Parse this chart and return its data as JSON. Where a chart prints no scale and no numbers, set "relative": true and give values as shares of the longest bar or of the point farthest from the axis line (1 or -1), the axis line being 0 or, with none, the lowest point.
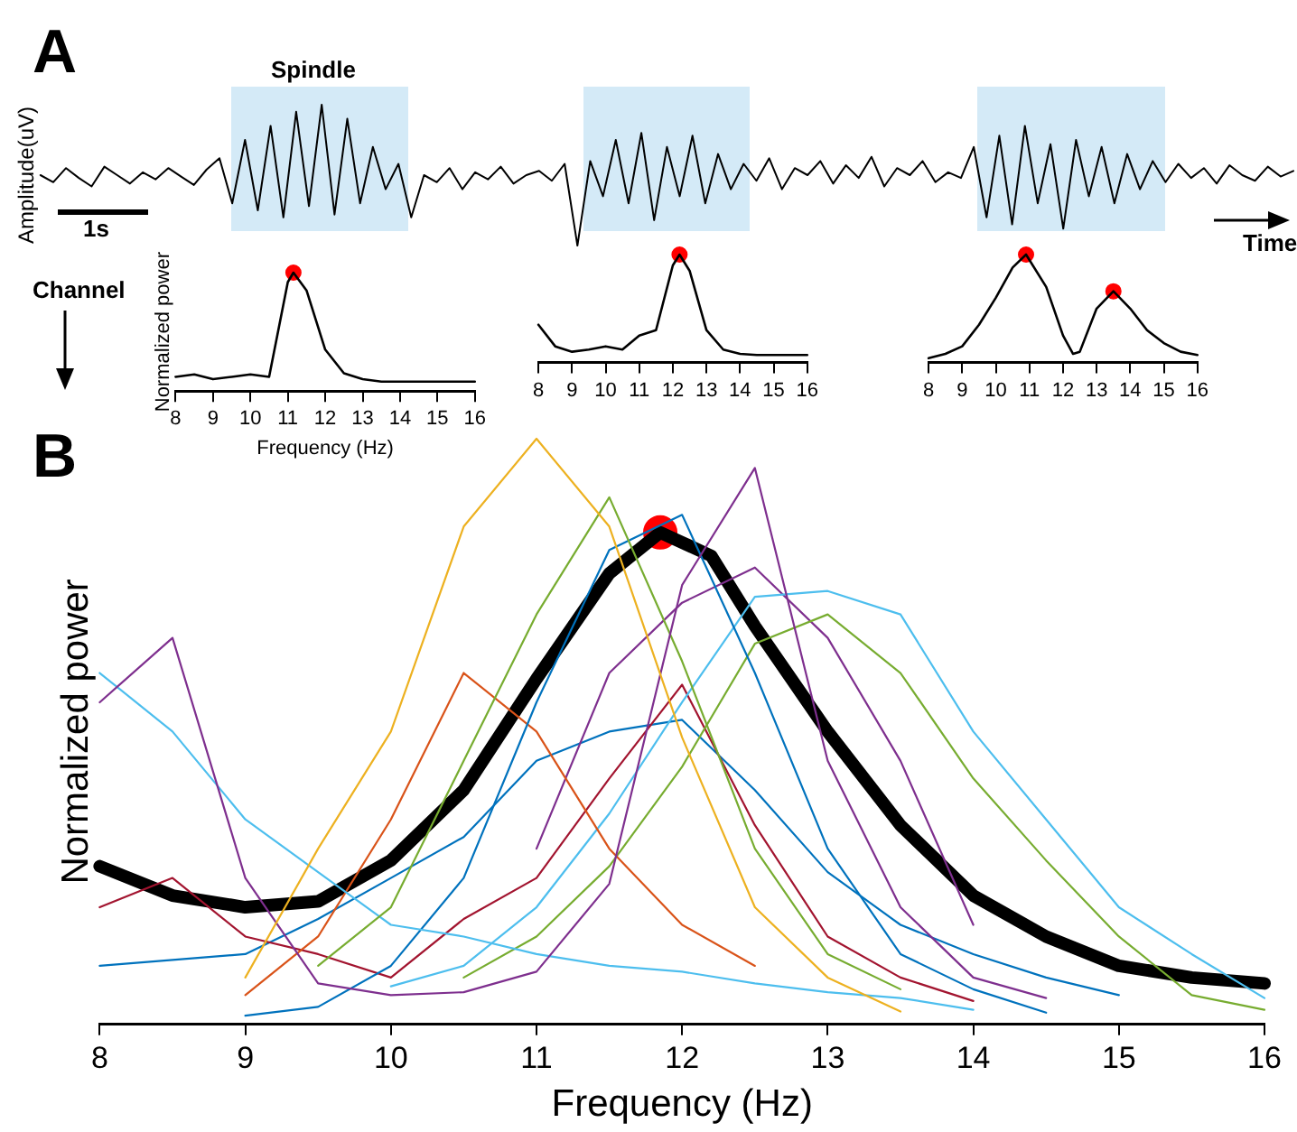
{
  "chart_data": [
    {
      "type": "line",
      "relative": true,
      "ylabel": "Amplitude(uV)",
      "tick_labels": false,
      "color": "#000000",
      "categories": [
        null,
        null,
        null,
        null,
        null,
        null,
        null,
        null,
        null,
        null,
        null,
        null,
        null,
        null,
        null,
        null,
        null,
        null,
        null,
        null,
        null,
        null,
        null,
        null,
        null,
        null,
        null,
        null,
        null,
        null,
        null,
        null,
        null,
        null,
        null,
        null,
        null,
        null,
        null,
        null,
        null,
        null,
        null,
        null,
        null,
        null,
        null,
        null,
        null,
        null,
        null,
        null,
        null,
        null,
        null,
        null,
        null,
        null,
        null,
        null,
        null,
        null,
        null,
        null,
        null,
        null,
        null,
        null,
        null,
        null,
        null,
        null,
        null,
        null,
        null,
        null,
        null,
        null,
        null,
        null,
        null,
        null,
        null,
        null,
        null,
        null,
        null,
        null,
        null,
        null,
        null,
        null,
        null,
        null,
        null,
        null,
        null,
        null,
        null
      ],
      "values": [
        0.5,
        0.45,
        0.55,
        0.48,
        0.42,
        0.56,
        0.5,
        0.44,
        0.52,
        0.47,
        0.55,
        0.49,
        0.43,
        0.54,
        0.62,
        0.3,
        0.75,
        0.25,
        0.85,
        0.2,
        0.95,
        0.28,
        1.0,
        0.22,
        0.9,
        0.3,
        0.7,
        0.4,
        0.58,
        0.2,
        0.5,
        0.45,
        0.55,
        0.4,
        0.52,
        0.47,
        0.56,
        0.44,
        0.5,
        0.53,
        0.46,
        0.58,
        0,
        0.6,
        0.35,
        0.75,
        0.3,
        0.8,
        0.18,
        0.7,
        0.35,
        0.78,
        0.3,
        0.65,
        0.4,
        0.58,
        0.46,
        0.62,
        0.4,
        0.55,
        0.5,
        0.6,
        0.44,
        0.57,
        0.48,
        0.63,
        0.42,
        0.55,
        0.5,
        0.6,
        0.45,
        0.52,
        0.48,
        0.7,
        0.2,
        0.78,
        0.15,
        0.85,
        0.3,
        0.72,
        0.12,
        0.75,
        0.35,
        0.7,
        0.3,
        0.65,
        0.4,
        0.6,
        0.45,
        0.58,
        0.48,
        0.55,
        0.44,
        0.57,
        0.5,
        0.46,
        0.56,
        0.49,
        0.53
      ],
      "annotations": [
        "A",
        "Spindle",
        "1s",
        "Time",
        "Channel"
      ]
    },
    {
      "type": "line",
      "relative": true,
      "xlabel": "Frequency (Hz)",
      "ylabel": "Normalized power",
      "tick_labels": "x",
      "xlim": [
        8,
        16
      ],
      "xticks": [
        8,
        9,
        10,
        11,
        12,
        13,
        14,
        15,
        16
      ],
      "series": [
        {
          "color": "#000000",
          "x": [
            8,
            8.5,
            9,
            9.5,
            10,
            10.5,
            11,
            11.15,
            11.5,
            12,
            12.5,
            13,
            13.5,
            14,
            14.5,
            15,
            15.5,
            16
          ],
          "values": [
            0.12,
            0.14,
            0.1,
            0.12,
            0.14,
            0.12,
            0.92,
            1,
            0.85,
            0.35,
            0.15,
            0.1,
            0.08,
            0.08,
            0.08,
            0.08,
            0.08,
            0.08
          ]
        },
        {
          "type": "scatter",
          "marker": "circle",
          "color": "#ff0000",
          "x": [
            11.15
          ],
          "values": [
            1
          ]
        }
      ]
    },
    {
      "type": "line",
      "relative": true,
      "tick_labels": "x",
      "xlim": [
        8,
        16
      ],
      "xticks": [
        8,
        9,
        10,
        11,
        12,
        13,
        14,
        15,
        16
      ],
      "series": [
        {
          "color": "#000000",
          "x": [
            8,
            8.5,
            9,
            9.5,
            10,
            10.5,
            11,
            11.5,
            12,
            12.2,
            12.5,
            13,
            13.5,
            14,
            14.5,
            15,
            15.5,
            16
          ],
          "values": [
            0.35,
            0.15,
            0.1,
            0.12,
            0.15,
            0.12,
            0.25,
            0.3,
            0.9,
            1,
            0.85,
            0.3,
            0.12,
            0.08,
            0.07,
            0.07,
            0.07,
            0.07
          ]
        },
        {
          "type": "scatter",
          "marker": "circle",
          "color": "#ff0000",
          "x": [
            12.2
          ],
          "values": [
            1
          ]
        }
      ]
    },
    {
      "type": "line",
      "relative": true,
      "tick_labels": "x",
      "xlim": [
        8,
        16
      ],
      "xticks": [
        8,
        9,
        10,
        11,
        12,
        13,
        14,
        15,
        16
      ],
      "series": [
        {
          "color": "#000000",
          "x": [
            8,
            8.5,
            9,
            9.5,
            10,
            10.5,
            10.9,
            11.5,
            12,
            12.3,
            12.5,
            13,
            13.5,
            14,
            14.5,
            15,
            15.5,
            16
          ],
          "values": [
            0.04,
            0.08,
            0.15,
            0.35,
            0.6,
            0.88,
            1,
            0.7,
            0.25,
            0.08,
            0.1,
            0.5,
            0.66,
            0.5,
            0.3,
            0.18,
            0.1,
            0.07
          ]
        },
        {
          "type": "scatter",
          "marker": "circle",
          "color": "#ff0000",
          "x": [
            10.9,
            13.5
          ],
          "values": [
            1,
            0.66
          ]
        }
      ]
    },
    {
      "type": "line",
      "relative": true,
      "xlabel": "Frequency (Hz)",
      "ylabel": "Normalized power",
      "tick_labels": "x",
      "xlim": [
        8,
        16
      ],
      "xticks": [
        8,
        9,
        10,
        11,
        12,
        13,
        14,
        15,
        16
      ],
      "x": [
        8,
        8.5,
        9,
        9.5,
        10,
        10.5,
        11,
        11.5,
        12,
        12.5,
        13,
        13.5,
        14,
        14.5,
        15,
        15.5,
        16
      ],
      "series": [
        {
          "color": "#edb120",
          "values": [
            null,
            null,
            0.08,
            0.3,
            0.5,
            0.85,
            1,
            0.85,
            0.49,
            0.2,
            0.08,
            0.022,
            null,
            null,
            null,
            null,
            null
          ]
        },
        {
          "color": "#7e2f8e",
          "values": [
            0.55,
            0.66,
            0.25,
            0.07,
            0.05,
            0.055,
            0.09,
            0.24,
            0.75,
            0.95,
            0.45,
            0.2,
            0.08,
            0.045,
            null,
            null,
            null
          ]
        },
        {
          "color": "#77ac30",
          "values": [
            null,
            null,
            null,
            0.1,
            0.2,
            0.45,
            0.7,
            0.9,
            0.62,
            0.3,
            0.12,
            0.06,
            null,
            null,
            null,
            null,
            null
          ]
        },
        {
          "color": "#4dbeee",
          "values": [
            0.6,
            0.5,
            0.35,
            0.26,
            0.17,
            0.15,
            0.12,
            0.1,
            0.09,
            0.07,
            0.055,
            0.045,
            0.025,
            null,
            null,
            null,
            null
          ]
        },
        {
          "color": "#0072bd",
          "values": [
            null,
            null,
            0.015,
            0.03,
            0.1,
            0.25,
            0.55,
            0.81,
            0.87,
            0.6,
            0.3,
            0.12,
            0.06,
            0.02,
            null,
            null,
            null
          ]
        },
        {
          "color": "#d95319",
          "values": [
            null,
            null,
            0.05,
            0.15,
            0.35,
            0.6,
            0.5,
            0.3,
            0.17,
            0.1,
            null,
            null,
            null,
            null,
            null,
            null,
            null
          ]
        },
        {
          "color": "#4dbeee",
          "values": [
            null,
            null,
            null,
            null,
            0.065,
            0.1,
            0.2,
            0.36,
            0.55,
            0.73,
            0.74,
            0.7,
            0.5,
            0.35,
            0.2,
            0.12,
            0.045
          ]
        },
        {
          "color": "#77ac30",
          "values": [
            null,
            null,
            null,
            null,
            null,
            0.08,
            0.15,
            0.27,
            0.44,
            0.65,
            0.7,
            0.6,
            0.42,
            0.28,
            0.15,
            0.05,
            0.025
          ]
        },
        {
          "color": "#7e2f8e",
          "values": [
            null,
            null,
            null,
            null,
            null,
            null,
            0.3,
            0.6,
            0.72,
            0.78,
            0.66,
            0.45,
            0.17,
            null,
            null,
            null,
            null
          ]
        },
        {
          "color": "#a2142f",
          "values": [
            0.2,
            0.25,
            0.15,
            0.12,
            0.08,
            0.18,
            0.25,
            0.42,
            0.58,
            0.34,
            0.15,
            0.08,
            0.04,
            null,
            null,
            null,
            null
          ]
        },
        {
          "color": "#0072bd",
          "values": [
            0.1,
            0.11,
            0.12,
            0.18,
            0.25,
            0.32,
            0.45,
            0.5,
            0.52,
            0.4,
            0.26,
            0.17,
            0.12,
            0.08,
            0.05,
            null,
            null
          ]
        },
        {
          "color": "#000000",
          "x": [
            8,
            8.5,
            9,
            9.5,
            10,
            10.5,
            11,
            11.5,
            11.85,
            12.2,
            12.5,
            13,
            13.5,
            14,
            14.5,
            15,
            15.5,
            16
          ],
          "values": [
            0.27,
            0.22,
            0.2,
            0.21,
            0.28,
            0.4,
            0.59,
            0.77,
            0.84,
            0.8,
            0.68,
            0.5,
            0.34,
            0.22,
            0.15,
            0.1,
            0.08,
            0.07
          ]
        },
        {
          "type": "scatter",
          "marker": "circle",
          "color": "#ff0000",
          "x": [
            11.85
          ],
          "values": [
            0.84
          ]
        }
      ],
      "annotations": [
        "B"
      ]
    }
  ]
}
